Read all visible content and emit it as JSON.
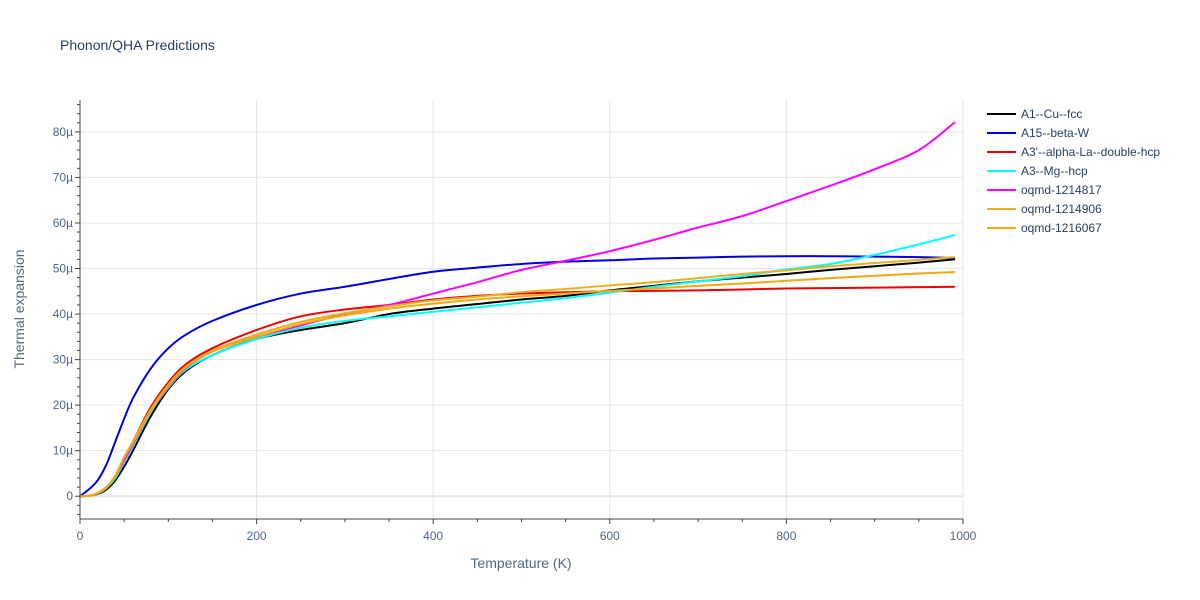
{
  "chart_data": {
    "type": "line",
    "title": "Phonon/QHA Predictions",
    "xlabel": "Temperature (K)",
    "ylabel": "Thermal expansion",
    "xlim": [
      0,
      1000
    ],
    "ylim": [
      -5e-06,
      8.7e-05
    ],
    "x_ticks": [
      0,
      200,
      400,
      600,
      800,
      1000
    ],
    "x_tick_labels": [
      "0",
      "200",
      "400",
      "600",
      "800",
      "1000"
    ],
    "y_ticks": [
      0,
      1e-05,
      2e-05,
      3e-05,
      4e-05,
      5e-05,
      6e-05,
      7e-05,
      8e-05
    ],
    "y_tick_labels": [
      "0",
      "10µ",
      "20µ",
      "30µ",
      "40µ",
      "50µ",
      "60µ",
      "70µ",
      "80µ"
    ],
    "grid": true,
    "legend_position": "right",
    "x": [
      0,
      10,
      20,
      30,
      40,
      50,
      60,
      80,
      100,
      120,
      150,
      200,
      250,
      300,
      350,
      400,
      450,
      500,
      550,
      600,
      650,
      700,
      750,
      800,
      850,
      900,
      950,
      990
    ],
    "series": [
      {
        "name": "A1--Cu--fcc",
        "color": "#000000",
        "values": [
          0,
          1e-07,
          5e-07,
          1.5e-06,
          3.5e-06,
          6.5e-06,
          1e-05,
          1.75e-05,
          2.35e-05,
          2.75e-05,
          3.1e-05,
          3.45e-05,
          3.65e-05,
          3.8e-05,
          4e-05,
          4.12e-05,
          4.22e-05,
          4.32e-05,
          4.4e-05,
          4.52e-05,
          4.62e-05,
          4.72e-05,
          4.8e-05,
          4.88e-05,
          4.97e-05,
          5.05e-05,
          5.13e-05,
          5.2e-05
        ]
      },
      {
        "name": "A15--beta-W",
        "color": "#0000dd",
        "values": [
          0,
          1.5e-06,
          3.5e-06,
          7e-06,
          1.2e-05,
          1.7e-05,
          2.15e-05,
          2.8e-05,
          3.25e-05,
          3.55e-05,
          3.85e-05,
          4.2e-05,
          4.45e-05,
          4.6e-05,
          4.77e-05,
          4.93e-05,
          5.02e-05,
          5.1e-05,
          5.15e-05,
          5.18e-05,
          5.22e-05,
          5.24e-05,
          5.26e-05,
          5.27e-05,
          5.27e-05,
          5.26e-05,
          5.25e-05,
          5.23e-05
        ]
      },
      {
        "name": "A3'--alpha-La--double-hcp",
        "color": "#ee0000",
        "values": [
          0,
          1e-07,
          7e-07,
          2e-06,
          4.5e-06,
          8.5e-06,
          1.2e-05,
          1.95e-05,
          2.5e-05,
          2.9e-05,
          3.25e-05,
          3.65e-05,
          3.95e-05,
          4.1e-05,
          4.2e-05,
          4.32e-05,
          4.4e-05,
          4.45e-05,
          4.48e-05,
          4.5e-05,
          4.51e-05,
          4.52e-05,
          4.54e-05,
          4.56e-05,
          4.57e-05,
          4.58e-05,
          4.59e-05,
          4.6e-05
        ]
      },
      {
        "name": "A3--Mg--hcp",
        "color": "#00ffff",
        "values": [
          0,
          1e-07,
          6e-07,
          1.8e-06,
          4e-06,
          7.5e-06,
          1.1e-05,
          1.85e-05,
          2.38e-05,
          2.78e-05,
          3.1e-05,
          3.45e-05,
          3.7e-05,
          3.85e-05,
          3.95e-05,
          4.05e-05,
          4.15e-05,
          4.25e-05,
          4.35e-05,
          4.47e-05,
          4.6e-05,
          4.72e-05,
          4.83e-05,
          4.98e-05,
          5.1e-05,
          5.3e-05,
          5.53e-05,
          5.73e-05
        ]
      },
      {
        "name": "oqmd-1214817",
        "color": "#ff00ff",
        "values": [
          0,
          1e-07,
          7e-07,
          2e-06,
          4.5e-06,
          8e-06,
          1.15e-05,
          1.88e-05,
          2.4e-05,
          2.82e-05,
          3.18e-05,
          3.5e-05,
          3.75e-05,
          4e-05,
          4.2e-05,
          4.45e-05,
          4.7e-05,
          4.97e-05,
          5.17e-05,
          5.38e-05,
          5.63e-05,
          5.9e-05,
          6.15e-05,
          6.48e-05,
          6.82e-05,
          7.18e-05,
          7.6e-05,
          8.2e-05
        ]
      },
      {
        "name": "oqmd-1214906",
        "color": "#e6b020",
        "values": [
          0,
          1e-07,
          7e-07,
          2e-06,
          4.5e-06,
          8.5e-06,
          1.2e-05,
          1.9e-05,
          2.45e-05,
          2.85e-05,
          3.2e-05,
          3.55e-05,
          3.83e-05,
          4.02e-05,
          4.17e-05,
          4.3e-05,
          4.38e-05,
          4.48e-05,
          4.55e-05,
          4.63e-05,
          4.7e-05,
          4.79e-05,
          4.88e-05,
          4.96e-05,
          5.05e-05,
          5.12e-05,
          5.19e-05,
          5.25e-05
        ]
      },
      {
        "name": "oqmd-1216067",
        "color": "#f5a80f",
        "values": [
          0,
          1e-07,
          7e-07,
          2e-06,
          4.5e-06,
          8.5e-06,
          1.18e-05,
          1.88e-05,
          2.42e-05,
          2.83e-05,
          3.18e-05,
          3.5e-05,
          3.78e-05,
          3.97e-05,
          4.12e-05,
          4.23e-05,
          4.32e-05,
          4.39e-05,
          4.45e-05,
          4.51e-05,
          4.56e-05,
          4.62e-05,
          4.67e-05,
          4.73e-05,
          4.79e-05,
          4.84e-05,
          4.89e-05,
          4.92e-05
        ]
      }
    ]
  }
}
